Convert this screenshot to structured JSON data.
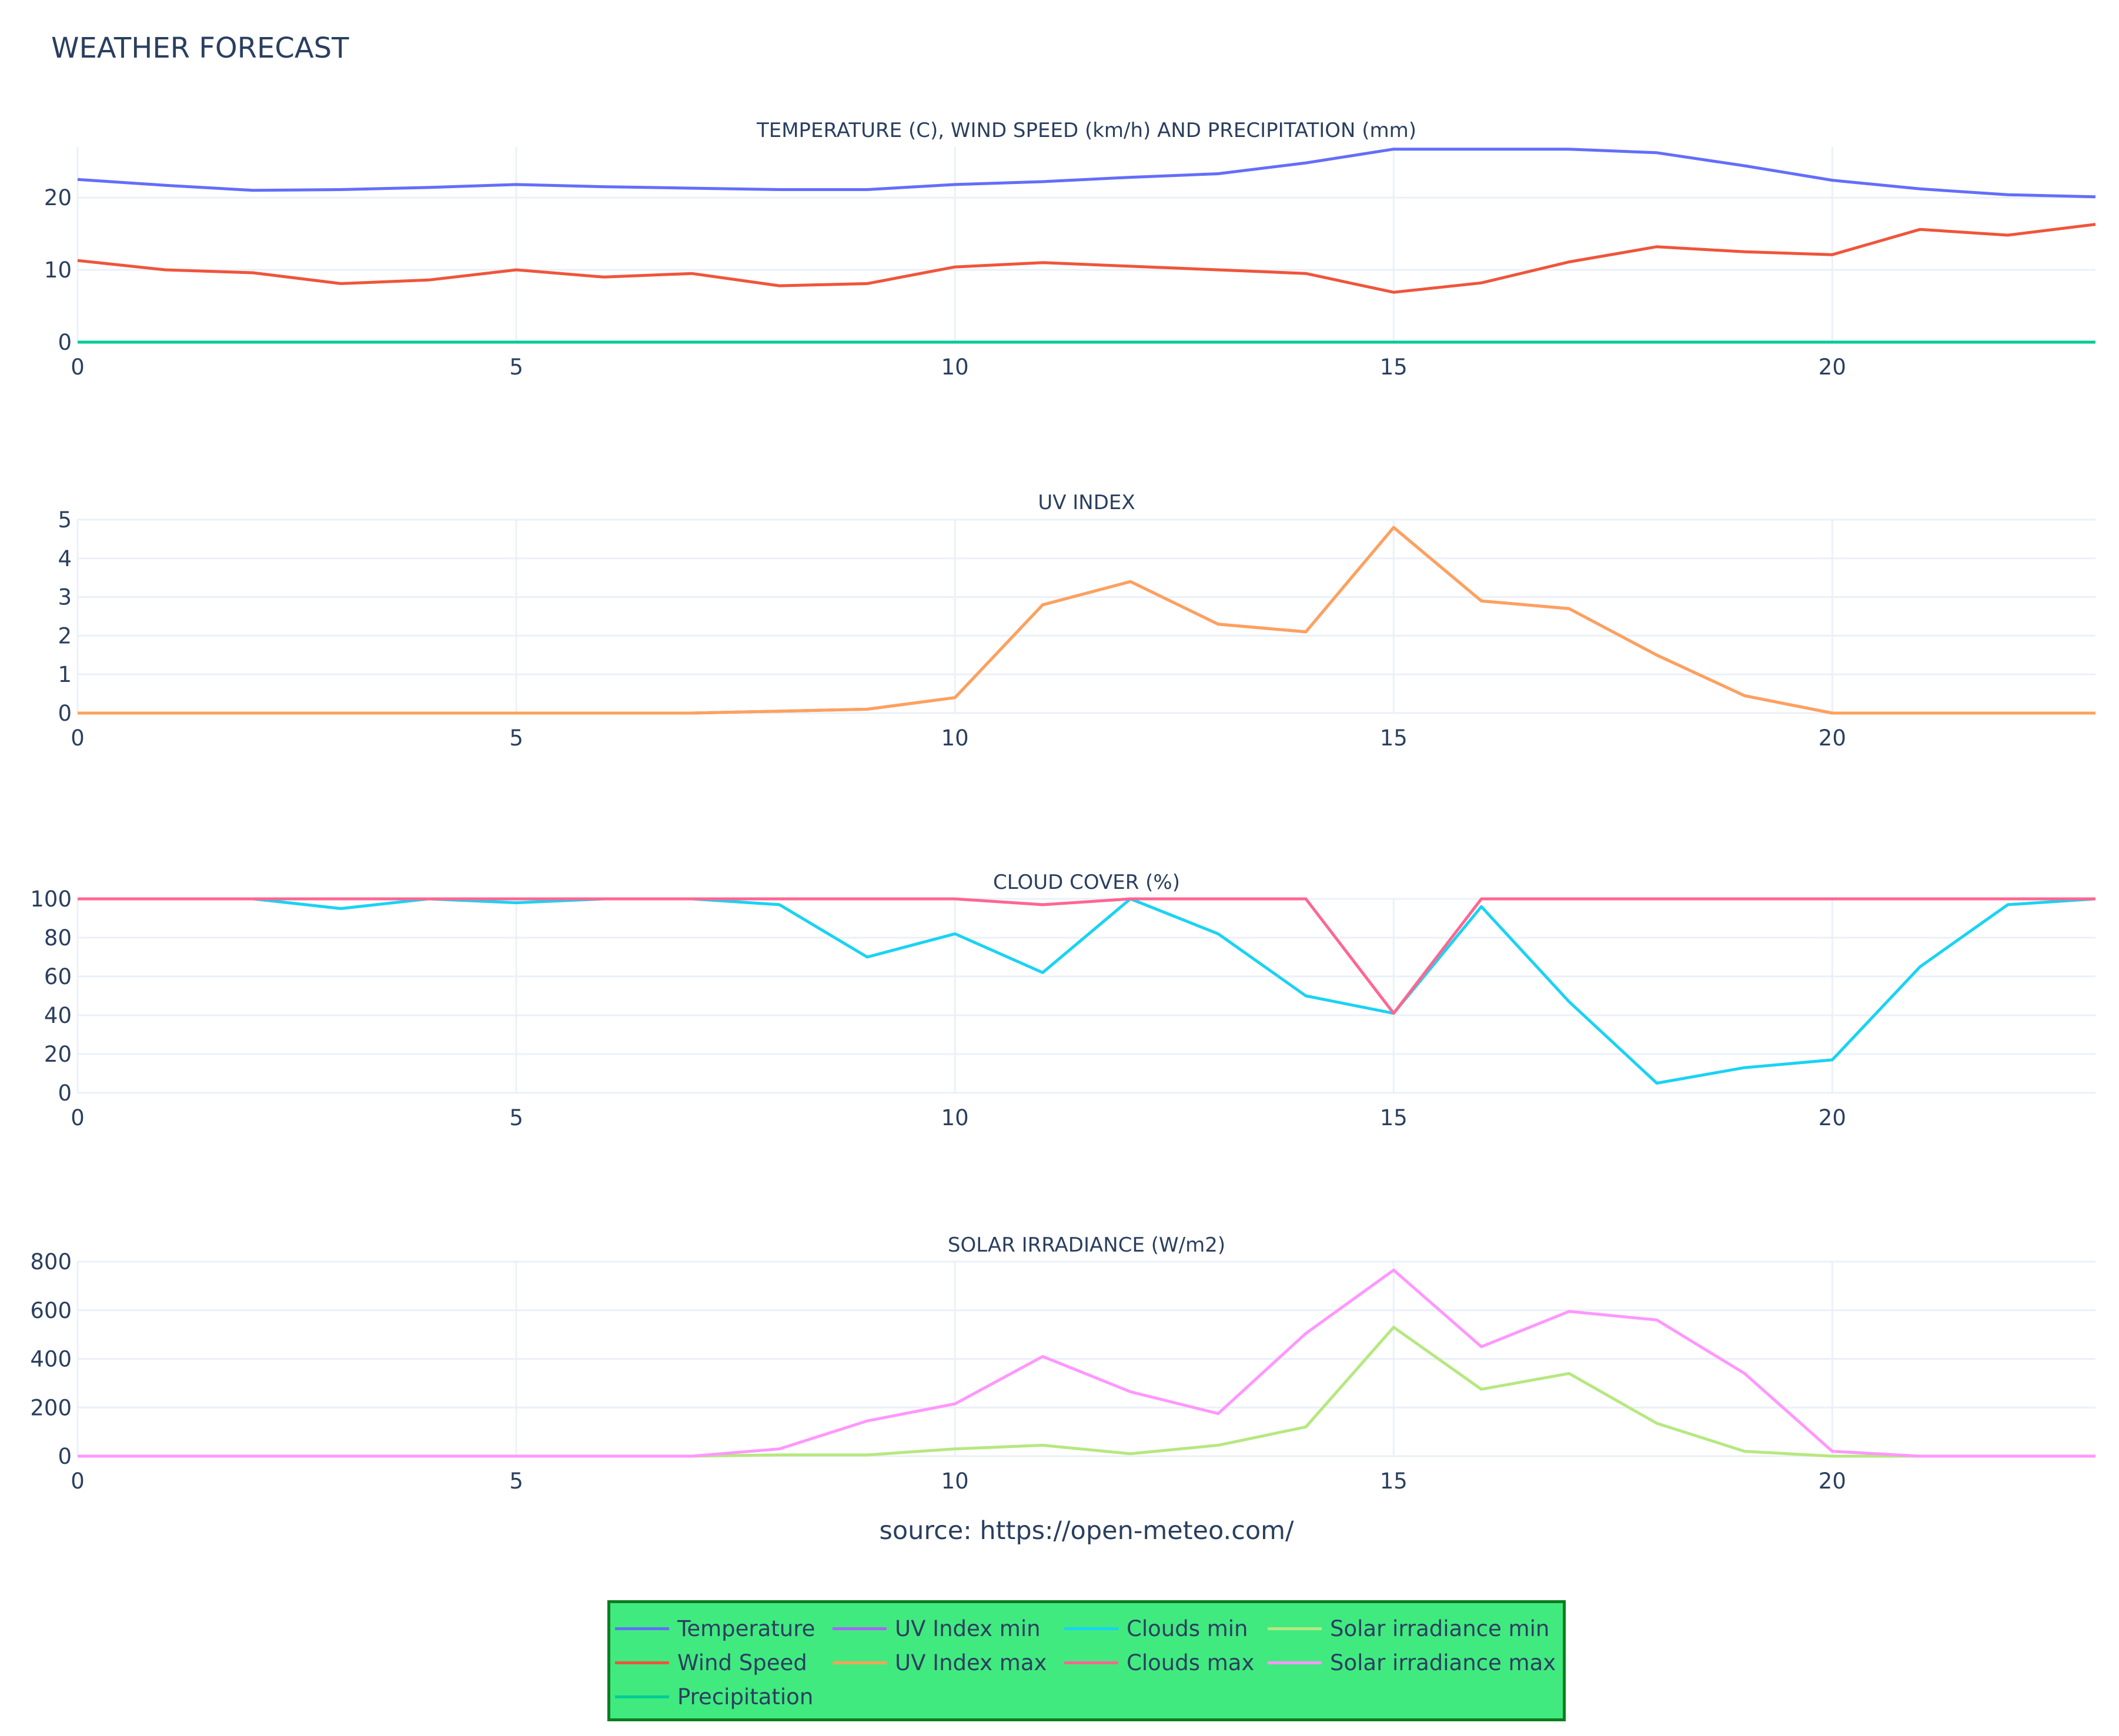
{
  "title": "WEATHER FORECAST",
  "source": "source: https://open-meteo.com/",
  "x_tick_labels": [
    "0",
    "5",
    "10",
    "15",
    "20"
  ],
  "colors": {
    "temperature": "#636efa",
    "wind_speed": "#ef553b",
    "precipitation": "#00cc96",
    "uv_index_min": "#ab63fa",
    "uv_index_max": "#ffa15a",
    "clouds_min": "#19d3f3",
    "clouds_max": "#ff6692",
    "solar_irradiance_min": "#b6e880",
    "solar_irradiance_max": "#ff97ff",
    "legend_bg": "#40ea7f",
    "legend_border": "#0c7d1f",
    "grid": "#ebf0f8"
  },
  "legend": {
    "columns": [
      [
        "Temperature",
        "Wind Speed",
        "Precipitation"
      ],
      [
        "UV Index min",
        "UV Index max"
      ],
      [
        "Clouds min",
        "Clouds max"
      ],
      [
        "Solar irradiance min",
        "Solar irradiance max"
      ]
    ],
    "placement": "bottom-center"
  },
  "chart_data": [
    {
      "type": "line",
      "title": "TEMPERATURE (C), WIND SPEED (km/h) AND PRECIPITATION (mm)",
      "x": [
        0,
        1,
        2,
        3,
        4,
        5,
        6,
        7,
        8,
        9,
        10,
        11,
        12,
        13,
        14,
        15,
        16,
        17,
        18,
        19,
        20,
        21,
        22,
        23
      ],
      "xlim": [
        0,
        23
      ],
      "ylim": [
        0,
        27
      ],
      "yticks": [
        0,
        10,
        20
      ],
      "grid": true,
      "series": [
        {
          "name": "Temperature",
          "values": [
            22.5,
            21.7,
            21.0,
            21.1,
            21.4,
            21.8,
            21.5,
            21.3,
            21.1,
            21.1,
            21.8,
            22.2,
            22.8,
            23.3,
            24.8,
            26.7,
            26.7,
            26.7,
            26.2,
            24.4,
            22.4,
            21.2,
            20.4,
            20.1
          ]
        },
        {
          "name": "Wind Speed",
          "values": [
            11.3,
            10.0,
            9.6,
            8.1,
            8.6,
            10.0,
            9.0,
            9.5,
            7.8,
            8.1,
            10.4,
            11.0,
            10.5,
            10.0,
            9.5,
            6.9,
            8.2,
            11.1,
            13.2,
            12.5,
            12.1,
            15.6,
            14.8,
            16.3
          ]
        },
        {
          "name": "Precipitation",
          "values": [
            0,
            0,
            0,
            0,
            0,
            0,
            0,
            0,
            0,
            0,
            0,
            0,
            0,
            0,
            0,
            0,
            0,
            0,
            0,
            0,
            0,
            0,
            0,
            0
          ]
        }
      ]
    },
    {
      "type": "line",
      "title": "UV INDEX",
      "x": [
        0,
        1,
        2,
        3,
        4,
        5,
        6,
        7,
        8,
        9,
        10,
        11,
        12,
        13,
        14,
        15,
        16,
        17,
        18,
        19,
        20,
        21,
        22,
        23
      ],
      "xlim": [
        0,
        23
      ],
      "ylim": [
        0,
        5
      ],
      "yticks": [
        0,
        1,
        2,
        3,
        4,
        5
      ],
      "grid": true,
      "series": [
        {
          "name": "UV Index min",
          "values": [
            0,
            0,
            0,
            0,
            0,
            0,
            0,
            0,
            0.05,
            0.1,
            0.4,
            2.8,
            3.4,
            2.3,
            2.1,
            4.8,
            2.9,
            2.7,
            1.5,
            0.45,
            0,
            0,
            0,
            0
          ]
        },
        {
          "name": "UV Index max",
          "values": [
            0,
            0,
            0,
            0,
            0,
            0,
            0,
            0,
            0.05,
            0.1,
            0.4,
            2.8,
            3.4,
            2.3,
            2.1,
            4.8,
            2.9,
            2.7,
            1.5,
            0.45,
            0,
            0,
            0,
            0
          ]
        }
      ]
    },
    {
      "type": "line",
      "title": "CLOUD COVER (%)",
      "x": [
        0,
        1,
        2,
        3,
        4,
        5,
        6,
        7,
        8,
        9,
        10,
        11,
        12,
        13,
        14,
        15,
        16,
        17,
        18,
        19,
        20,
        21,
        22,
        23
      ],
      "xlim": [
        0,
        23
      ],
      "ylim": [
        0,
        100
      ],
      "yticks": [
        0,
        20,
        40,
        60,
        80,
        100
      ],
      "grid": true,
      "series": [
        {
          "name": "Clouds min",
          "values": [
            100,
            100,
            100,
            95,
            100,
            98,
            100,
            100,
            97,
            70,
            82,
            62,
            100,
            82,
            50,
            41,
            96,
            47,
            5,
            13,
            17,
            65,
            97,
            100
          ]
        },
        {
          "name": "Clouds max",
          "values": [
            100,
            100,
            100,
            100,
            100,
            100,
            100,
            100,
            100,
            100,
            100,
            97,
            100,
            100,
            100,
            41,
            100,
            100,
            100,
            100,
            100,
            100,
            100,
            100
          ]
        }
      ]
    },
    {
      "type": "line",
      "title": "SOLAR IRRADIANCE (W/m2)",
      "x": [
        0,
        1,
        2,
        3,
        4,
        5,
        6,
        7,
        8,
        9,
        10,
        11,
        12,
        13,
        14,
        15,
        16,
        17,
        18,
        19,
        20,
        21,
        22,
        23
      ],
      "xlim": [
        0,
        23
      ],
      "ylim": [
        0,
        800
      ],
      "yticks": [
        0,
        200,
        400,
        600,
        800
      ],
      "grid": true,
      "series": [
        {
          "name": "Solar irradiance min",
          "values": [
            0,
            0,
            0,
            0,
            0,
            0,
            0,
            0,
            5,
            5,
            30,
            45,
            10,
            45,
            120,
            530,
            275,
            340,
            135,
            20,
            0,
            0,
            0,
            0
          ]
        },
        {
          "name": "Solar irradiance max",
          "values": [
            0,
            0,
            0,
            0,
            0,
            0,
            0,
            0,
            30,
            145,
            215,
            410,
            265,
            175,
            505,
            765,
            450,
            595,
            560,
            340,
            20,
            0,
            0,
            0
          ]
        }
      ]
    }
  ]
}
